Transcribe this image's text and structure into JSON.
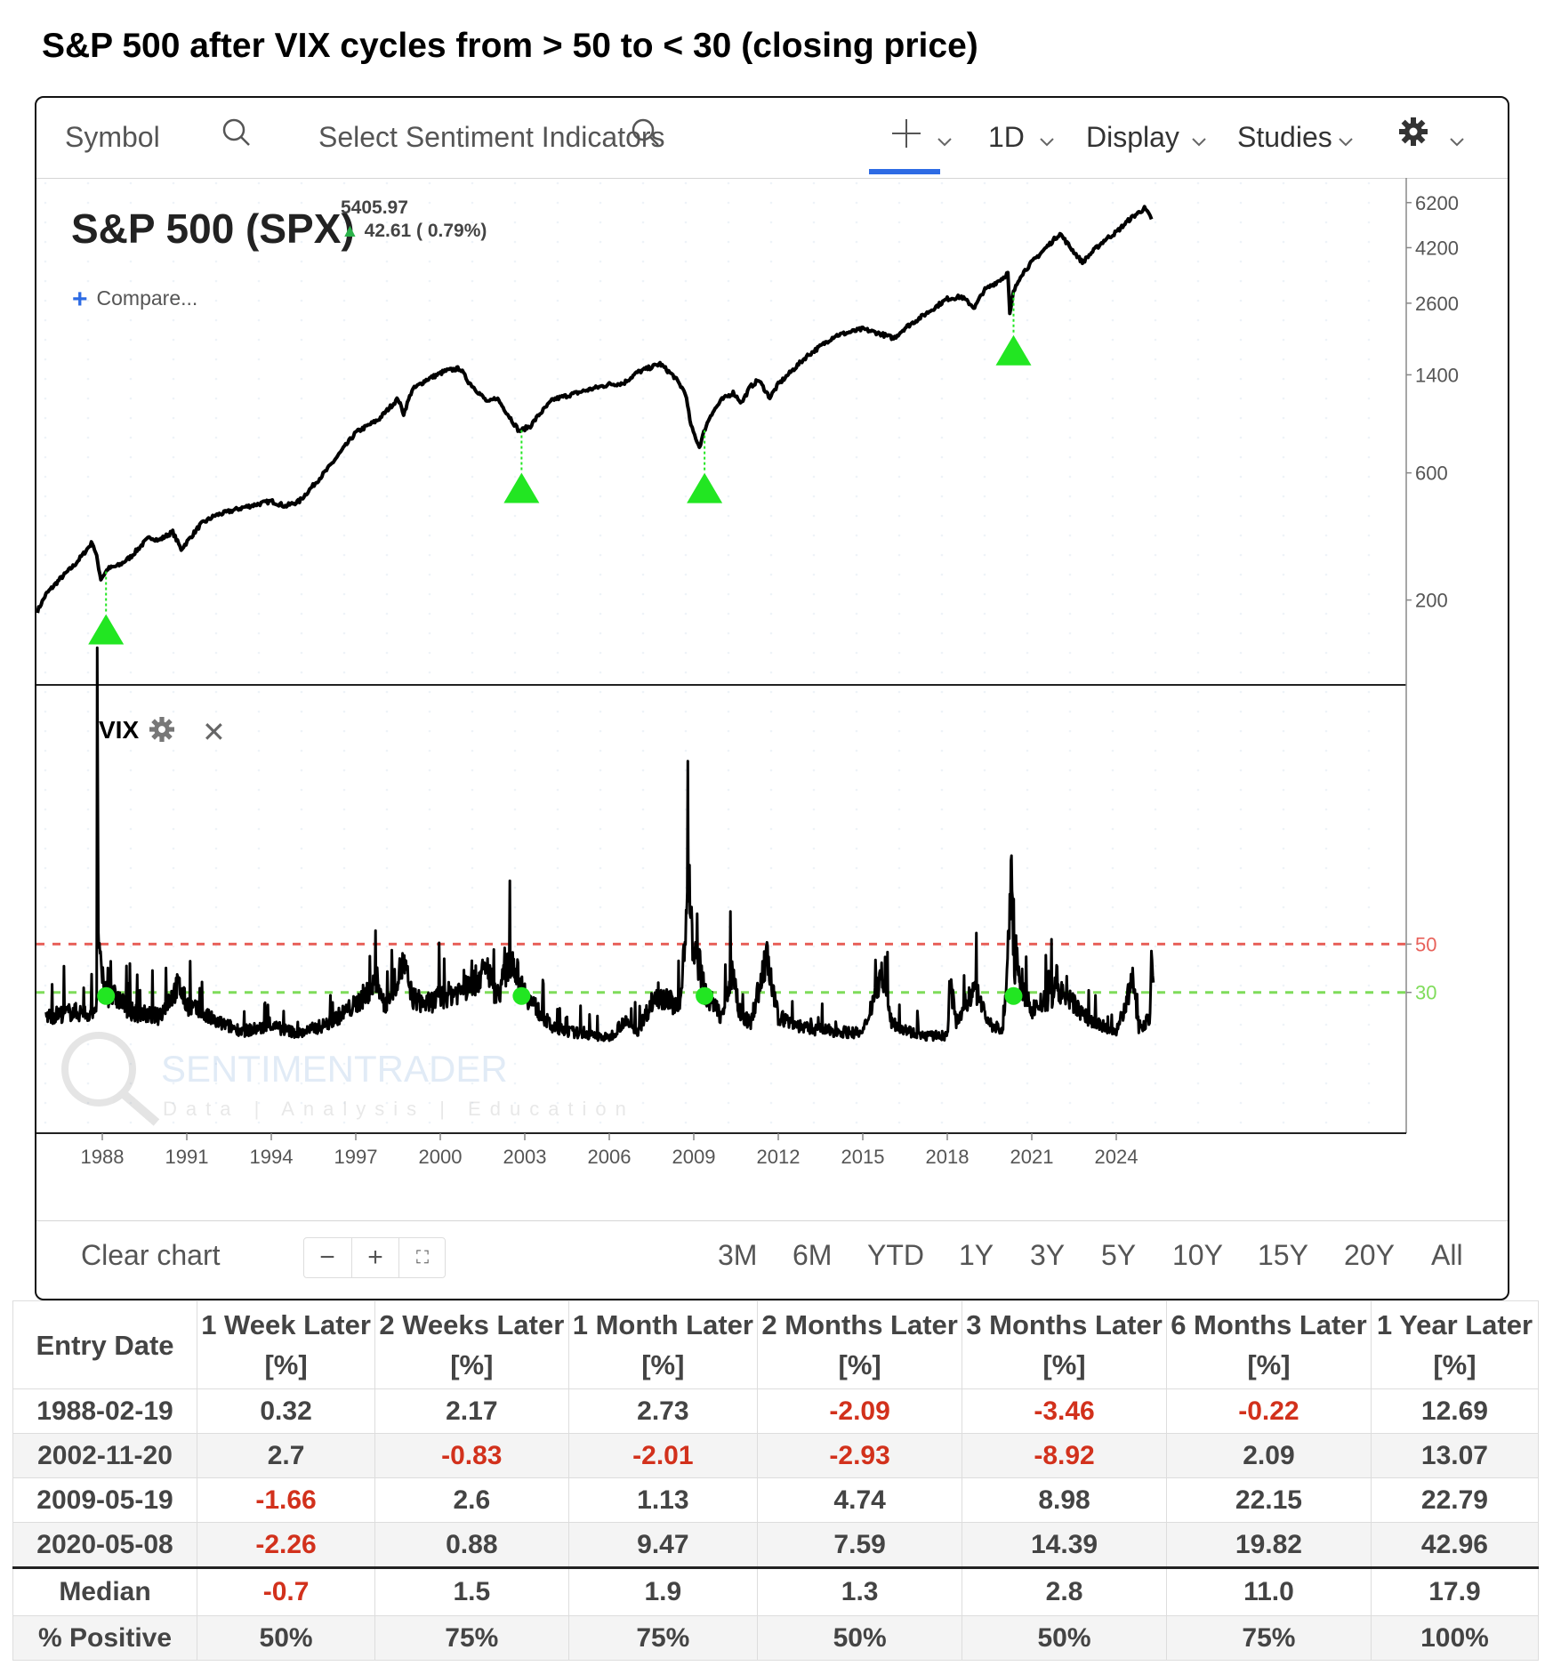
{
  "headline": "S&P 500 after VIX cycles from > 50 to < 30 (closing price)",
  "toolbar": {
    "symbol_placeholder": "Symbol",
    "indicators_placeholder": "Select Sentiment Indicators",
    "interval": "1D",
    "display": "Display",
    "studies": "Studies"
  },
  "price_panel": {
    "title": "S&P 500 (SPX)",
    "last_price": "5405.97",
    "change": "42.61 ( 0.79%)",
    "compare": "Compare..."
  },
  "vix_panel": {
    "label": "VIX"
  },
  "footer": {
    "clear_chart": "Clear chart",
    "ranges": [
      "3M",
      "6M",
      "YTD",
      "1Y",
      "3Y",
      "5Y",
      "10Y",
      "15Y",
      "20Y",
      "All"
    ]
  },
  "colors": {
    "signal": "#22e622",
    "line_50": "#e8615a",
    "line_30": "#7fdc5a",
    "accent": "#2d6be4",
    "negative": "#d2311c"
  },
  "icons": [
    "search-icon",
    "crosshair-icon",
    "chevron-down-icon",
    "gear-icon",
    "close-icon",
    "plus-icon",
    "fullscreen-icon",
    "up-arrow-icon"
  ],
  "chart_data": [
    {
      "type": "line",
      "yscale": "log",
      "ytick_labels": [
        "6200",
        "4200",
        "2600",
        "1400",
        "600",
        "200"
      ],
      "yticks": [
        6200,
        4200,
        2600,
        1400,
        600,
        200
      ],
      "xtick_labels": [
        "1988",
        "1991",
        "1994",
        "1997",
        "2000",
        "2003",
        "2006",
        "2009",
        "2012",
        "2015",
        "2018",
        "2021",
        "2024"
      ],
      "xrange": [
        1985.7,
        2026.0
      ],
      "series": [
        {
          "x": [
            1985.7,
            1986.0,
            1986.5,
            1987.0,
            1987.3,
            1987.65,
            1987.8,
            1987.95,
            1988.2,
            1988.6,
            1989.0,
            1989.5,
            1989.7,
            1990.0,
            1990.5,
            1990.8,
            1991.1,
            1991.5,
            1992.0,
            1993.0,
            1994.0,
            1994.5,
            1995.0,
            1996.0,
            1997.0,
            1997.8,
            1998.5,
            1998.7,
            1999.0,
            1999.5,
            2000.2,
            2000.7,
            2001.0,
            2001.7,
            2002.0,
            2002.5,
            2002.8,
            2003.2,
            2003.5,
            2004.0,
            2005.0,
            2006.0,
            2006.5,
            2007.0,
            2007.8,
            2008.3,
            2008.7,
            2008.9,
            2009.2,
            2009.4,
            2009.6,
            2010.0,
            2010.4,
            2010.7,
            2011.0,
            2011.3,
            2011.7,
            2012.0,
            2013.0,
            2014.0,
            2015.0,
            2015.6,
            2016.1,
            2016.5,
            2017.0,
            2018.0,
            2018.5,
            2018.97,
            2019.3,
            2020.0,
            2020.15,
            2020.22,
            2020.35,
            2020.6,
            2021.0,
            2022.0,
            2022.3,
            2022.8,
            2023.2,
            2023.6,
            2024.0,
            2024.5,
            2025.0,
            2025.15,
            2025.25
          ],
          "values": [
            182,
            210,
            240,
            270,
            295,
            330,
            290,
            240,
            262,
            270,
            290,
            330,
            345,
            335,
            360,
            310,
            340,
            385,
            415,
            445,
            470,
            450,
            470,
            620,
            850,
            950,
            1140,
            1000,
            1230,
            1340,
            1450,
            1480,
            1320,
            1100,
            1150,
            960,
            860,
            900,
            990,
            1130,
            1210,
            1290,
            1300,
            1430,
            1540,
            1380,
            1200,
            900,
            750,
            880,
            990,
            1130,
            1200,
            1100,
            1260,
            1340,
            1150,
            1290,
            1640,
            1960,
            2080,
            2000,
            1920,
            2100,
            2280,
            2700,
            2750,
            2500,
            2900,
            3250,
            3380,
            2350,
            2850,
            3300,
            3700,
            4750,
            4300,
            3700,
            4100,
            4500,
            4800,
            5400,
            5900,
            5600,
            5400
          ]
        }
      ],
      "signal_dates": [
        "1988-02-19",
        "2002-11-20",
        "2009-05-19",
        "2020-05-08"
      ]
    },
    {
      "type": "line",
      "ytick_labels": [
        "50",
        "30"
      ],
      "reference_lines": [
        50,
        30
      ],
      "xtick_labels": [
        "1988",
        "1991",
        "1994",
        "1997",
        "2000",
        "2003",
        "2006",
        "2009",
        "2012",
        "2015",
        "2018",
        "2021",
        "2024"
      ],
      "xrange": [
        1985.7,
        2026.0
      ],
      "yrange": [
        10,
        150
      ],
      "series": [
        {
          "x": [
            1986.0,
            1987.0,
            1987.5,
            1987.8,
            1987.82,
            1987.86,
            1987.92,
            1988.0,
            1988.2,
            1988.5,
            1989.0,
            1990.0,
            1990.7,
            1991.0,
            1992.0,
            1993.0,
            1994.0,
            1995.0,
            1996.0,
            1997.0,
            1997.8,
            1998.0,
            1998.7,
            1999.0,
            1999.5,
            2000.0,
            2001.0,
            2001.7,
            2002.0,
            2002.55,
            2002.8,
            2003.0,
            2003.3,
            2004.0,
            2005.0,
            2006.0,
            2006.5,
            2007.0,
            2007.6,
            2008.0,
            2008.5,
            2008.83,
            2008.9,
            2009.0,
            2009.2,
            2009.38,
            2009.5,
            2010.0,
            2010.4,
            2010.6,
            2011.0,
            2011.6,
            2011.8,
            2012.0,
            2013.0,
            2014.0,
            2015.0,
            2015.65,
            2016.0,
            2017.0,
            2018.0,
            2018.1,
            2018.3,
            2018.97,
            2019.5,
            2020.0,
            2020.2,
            2020.3,
            2020.36,
            2020.7,
            2021.0,
            2022.0,
            2022.5,
            2023.0,
            2024.0,
            2024.6,
            2024.8,
            2025.0,
            2025.2,
            2025.27,
            2025.32
          ],
          "values": [
            20,
            22,
            21,
            25,
            150,
            60,
            42,
            35,
            29,
            28,
            22,
            20,
            33,
            25,
            18,
            14,
            16,
            13,
            17,
            25,
            35,
            24,
            42,
            28,
            25,
            28,
            32,
            40,
            28,
            45,
            35,
            30,
            25,
            15,
            13,
            11,
            18,
            14,
            28,
            28,
            23,
            80,
            60,
            45,
            42,
            30,
            28,
            20,
            40,
            22,
            17,
            45,
            30,
            20,
            15,
            14,
            13,
            38,
            18,
            12,
            12,
            35,
            18,
            32,
            17,
            14,
            60,
            80,
            40,
            30,
            23,
            30,
            25,
            19,
            13,
            35,
            16,
            17,
            20,
            52,
            30
          ]
        }
      ],
      "signal_dates": [
        "1988-02-19",
        "2002-11-20",
        "2009-05-19",
        "2020-05-08"
      ]
    },
    {
      "type": "table",
      "columns": [
        "Entry Date",
        "1 Week Later [%]",
        "2 Weeks Later [%]",
        "1 Month Later [%]",
        "2 Months Later [%]",
        "3 Months Later [%]",
        "6 Months Later [%]",
        "1 Year Later [%]"
      ],
      "rows": [
        [
          "1988-02-19",
          "0.32",
          "2.17",
          "2.73",
          "-2.09",
          "-3.46",
          "-0.22",
          "12.69"
        ],
        [
          "2002-11-20",
          "2.7",
          "-0.83",
          "-2.01",
          "-2.93",
          "-8.92",
          "2.09",
          "13.07"
        ],
        [
          "2009-05-19",
          "-1.66",
          "2.6",
          "1.13",
          "4.74",
          "8.98",
          "22.15",
          "22.79"
        ],
        [
          "2020-05-08",
          "-2.26",
          "0.88",
          "9.47",
          "7.59",
          "14.39",
          "19.82",
          "42.96"
        ]
      ],
      "summary": [
        [
          "Median",
          "-0.7",
          "1.5",
          "1.9",
          "1.3",
          "2.8",
          "11.0",
          "17.9"
        ],
        [
          "% Positive",
          "50%",
          "75%",
          "75%",
          "50%",
          "50%",
          "75%",
          "100%"
        ]
      ]
    }
  ]
}
